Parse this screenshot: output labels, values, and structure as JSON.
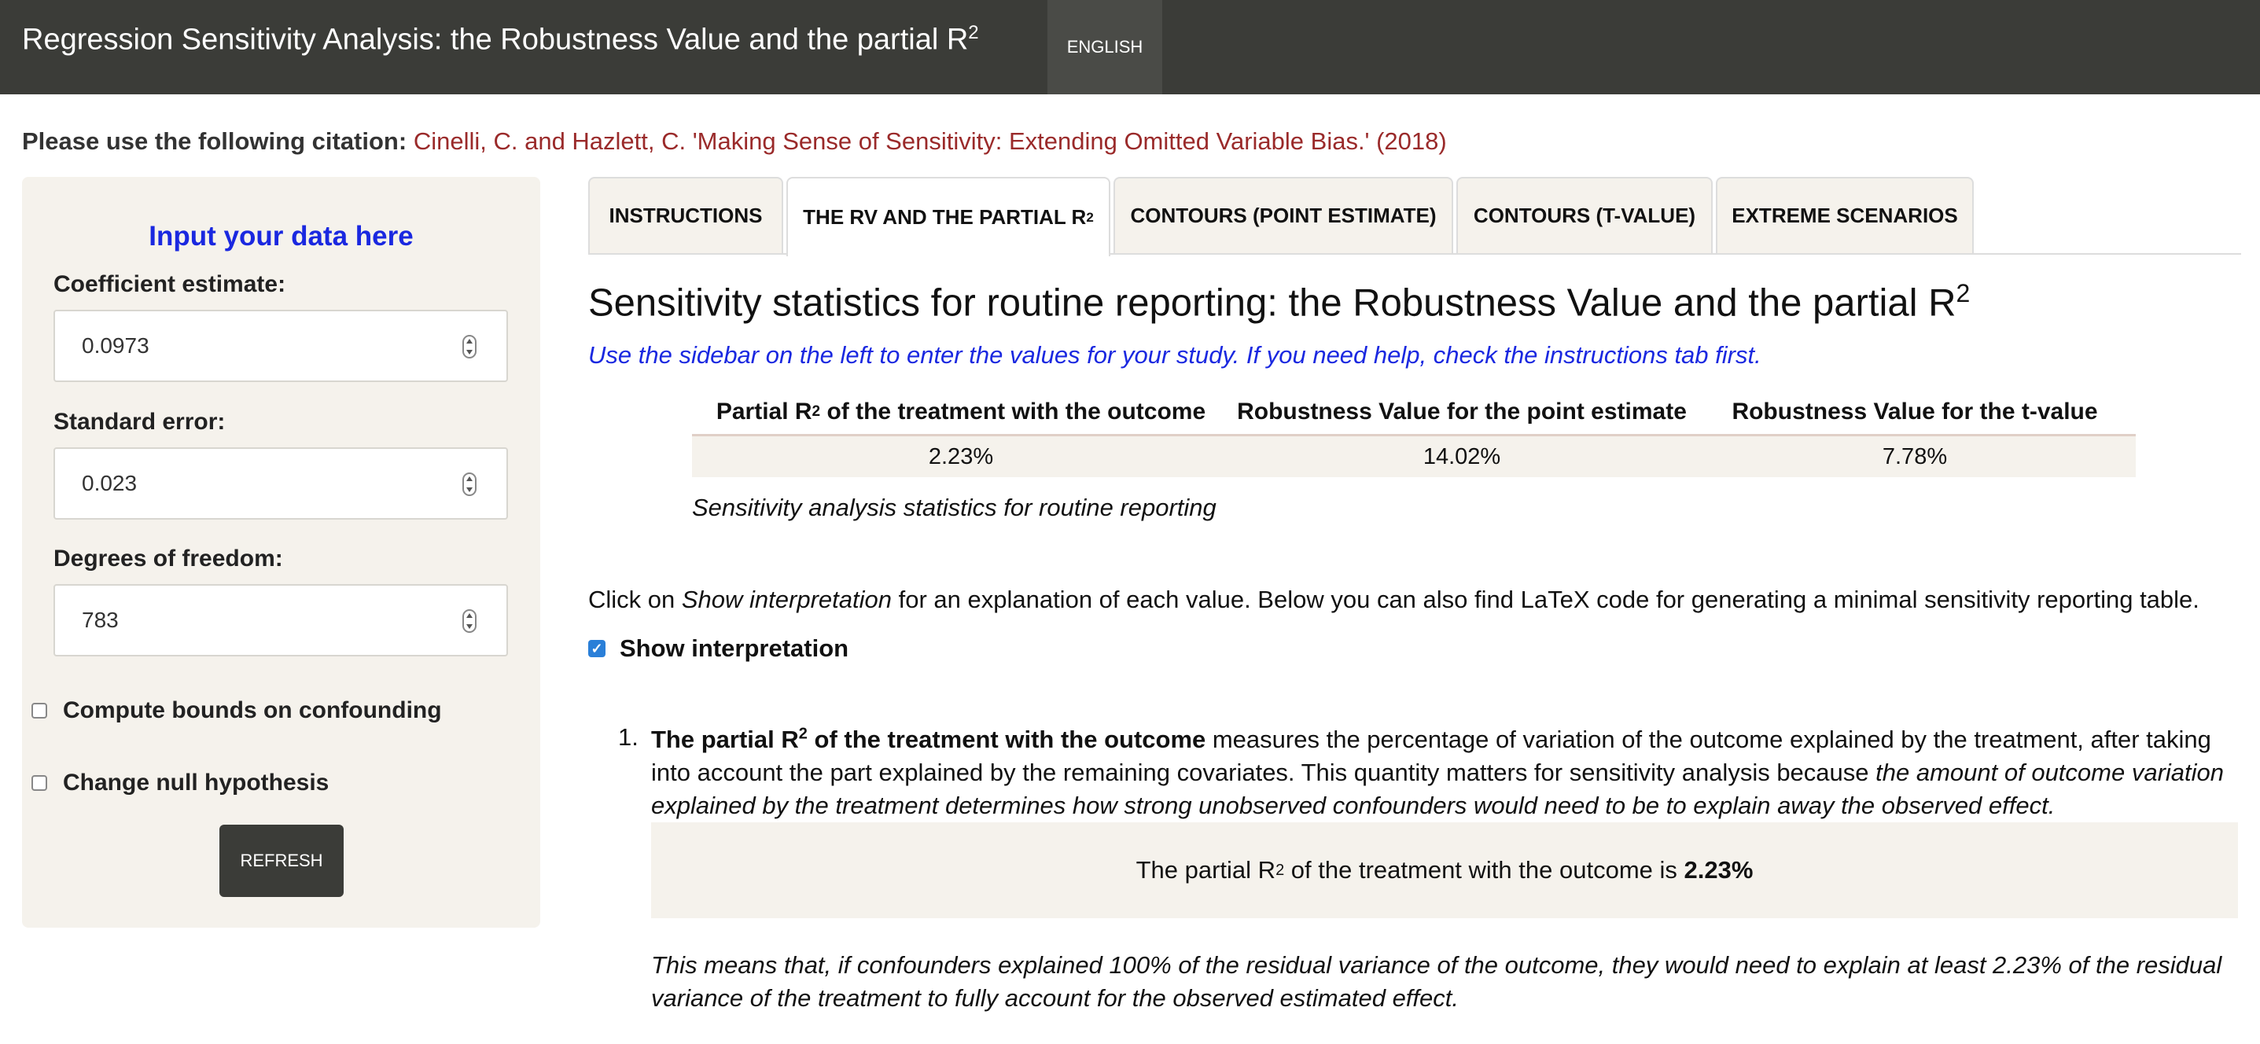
{
  "navbar": {
    "title": "Regression Sensitivity Analysis: the Robustness Value and the partial R",
    "title_sup": "2",
    "language": "ENGLISH"
  },
  "citation": {
    "label": "Please use the following citation:",
    "text": "Cinelli, C. and Hazlett, C. 'Making Sense of Sensitivity: Extending Omitted Variable Bias.' (2018)"
  },
  "sidebar": {
    "heading": "Input your data here",
    "coef_label": "Coefficient estimate:",
    "coef_value": "0.0973",
    "se_label": "Standard error:",
    "se_value": "0.023",
    "df_label": "Degrees of freedom:",
    "df_value": "783",
    "bounds_label": "Compute bounds on confounding",
    "null_label": "Change null hypothesis",
    "refresh_label": "REFRESH"
  },
  "tabs": [
    {
      "label": "INSTRUCTIONS"
    },
    {
      "label": "THE RV AND THE PARTIAL R",
      "sup": "2"
    },
    {
      "label": "CONTOURS (POINT ESTIMATE)"
    },
    {
      "label": "CONTOURS (T-VALUE)"
    },
    {
      "label": "EXTREME SCENARIOS"
    }
  ],
  "main": {
    "title": "Sensitivity statistics for routine reporting: the Robustness Value and the partial R",
    "title_sup": "2",
    "subtitle": "Use the sidebar on the left to enter the values for your study. If you need help, check the instructions tab first.",
    "table": {
      "headers": [
        {
          "pre": "Partial R",
          "sup": "2",
          "post": " of the treatment with the outcome"
        },
        {
          "pre": "Robustness Value for the point estimate"
        },
        {
          "pre": "Robustness Value for the t-value"
        }
      ],
      "row": [
        "2.23%",
        "14.02%",
        "7.78%"
      ]
    },
    "caption": "Sensitivity analysis statistics for routine reporting",
    "click_pre": "Click on ",
    "click_em": "Show interpretation",
    "click_post": " for an explanation of each value. Below you can also find LaTeX code for generating a minimal sensitivity reporting table.",
    "show_interpretation_label": "Show interpretation",
    "item_number": "1.",
    "item_bold_pre": "The partial R",
    "item_bold_sup": "2",
    "item_bold_post": " of the treatment with the outcome",
    "item_text": " measures the percentage of variation of the outcome explained by the treatment, after taking into account the part explained by the remaining covariates. This quantity matters for sensitivity analysis because ",
    "item_em": "the amount of outcome variation explained by the treatment determines how strong unobserved confounders would need to be to explain away the observed effect.",
    "result_pre": "The partial R",
    "result_sup": "2",
    "result_mid": " of the treatment with the outcome is ",
    "result_value": "2.23%",
    "explanation": "This means that, if confounders explained 100% of the residual variance of the outcome, they would need to explain at least 2.23% of the residual variance of the treatment to fully account for the observed estimated effect."
  }
}
